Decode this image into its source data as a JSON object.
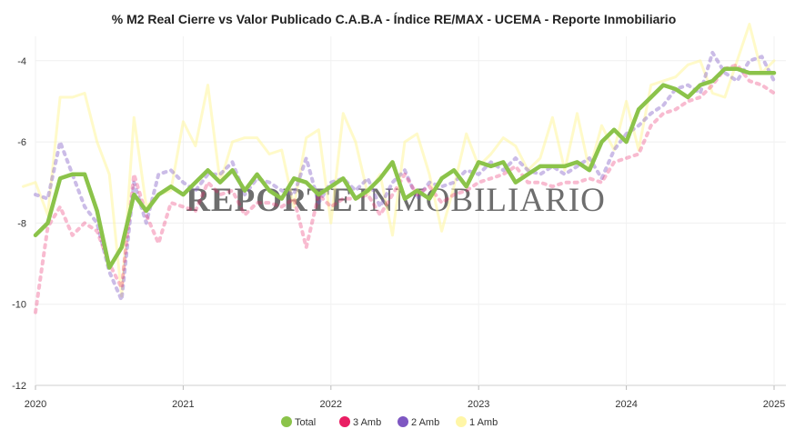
{
  "chart_data": {
    "type": "line",
    "title": "% M2 Real Cierre vs Valor Publicado C.A.B.A - Índice RE/MAX - UCEMA - Reporte Inmobiliario",
    "xlabel": "",
    "ylabel": "",
    "xlim": [
      2020.0,
      2025.08
    ],
    "ylim": [
      -12,
      -3.4
    ],
    "x_ticks": [
      "2020",
      "2021",
      "2022",
      "2023",
      "2024",
      "2025"
    ],
    "y_ticks": [
      "-4",
      "-6",
      "-8",
      "-10",
      "-12"
    ],
    "x_tick_values": [
      2020,
      2021,
      2022,
      2023,
      2024,
      2025
    ],
    "y_tick_values": [
      -4,
      -6,
      -8,
      -10,
      -12
    ],
    "grid": true,
    "legend_position": "bottom",
    "watermark": {
      "part1": "REPORTE",
      "part2": "INMOBILIARIO"
    },
    "series": [
      {
        "name": "1 Amb",
        "color": "#FFF59D",
        "style": "solid",
        "width": 3,
        "opacity": 0.55,
        "x": [
          2019.917,
          2020.0,
          2020.083,
          2020.167,
          2020.25,
          2020.333,
          2020.417,
          2020.5,
          2020.583,
          2020.667,
          2020.75,
          2020.833,
          2020.917,
          2021.0,
          2021.083,
          2021.167,
          2021.25,
          2021.333,
          2021.417,
          2021.5,
          2021.583,
          2021.667,
          2021.75,
          2021.833,
          2021.917,
          2022.0,
          2022.083,
          2022.167,
          2022.25,
          2022.333,
          2022.417,
          2022.5,
          2022.583,
          2022.667,
          2022.75,
          2022.833,
          2022.917,
          2023.0,
          2023.083,
          2023.167,
          2023.25,
          2023.333,
          2023.417,
          2023.5,
          2023.583,
          2023.667,
          2023.75,
          2023.833,
          2023.917,
          2024.0,
          2024.083,
          2024.167,
          2024.25,
          2024.333,
          2024.417,
          2024.5,
          2024.583,
          2024.667,
          2024.75,
          2024.833,
          2024.917,
          2025.0
        ],
        "values": [
          -7.1,
          -7.0,
          -7.8,
          -4.9,
          -4.9,
          -4.8,
          -6.0,
          -6.8,
          -9.8,
          -5.4,
          -7.6,
          -7.3,
          -7.2,
          -5.5,
          -6.1,
          -4.6,
          -7.0,
          -6.0,
          -5.9,
          -5.9,
          -6.3,
          -6.2,
          -7.6,
          -5.9,
          -5.7,
          -8.0,
          -5.3,
          -6.0,
          -7.3,
          -6.8,
          -8.3,
          -6.0,
          -5.8,
          -6.8,
          -8.2,
          -7.1,
          -5.8,
          -6.6,
          -6.3,
          -5.9,
          -6.1,
          -6.7,
          -6.4,
          -5.4,
          -6.7,
          -5.3,
          -6.7,
          -5.6,
          -6.2,
          -5.0,
          -6.2,
          -4.6,
          -4.5,
          -4.4,
          -4.1,
          -4.0,
          -4.8,
          -4.9,
          -4.0,
          -3.1,
          -4.3,
          -4.0
        ]
      },
      {
        "name": "2 Amb",
        "color": "#7E57C2",
        "style": "dotted",
        "width": 4,
        "opacity": 0.4,
        "x": [
          2020.0,
          2020.083,
          2020.167,
          2020.25,
          2020.333,
          2020.417,
          2020.5,
          2020.583,
          2020.667,
          2020.75,
          2020.833,
          2020.917,
          2021.0,
          2021.083,
          2021.167,
          2021.25,
          2021.333,
          2021.417,
          2021.5,
          2021.583,
          2021.667,
          2021.75,
          2021.833,
          2021.917,
          2022.0,
          2022.083,
          2022.167,
          2022.25,
          2022.333,
          2022.417,
          2022.5,
          2022.583,
          2022.667,
          2022.75,
          2022.833,
          2022.917,
          2023.0,
          2023.083,
          2023.167,
          2023.25,
          2023.333,
          2023.417,
          2023.5,
          2023.583,
          2023.667,
          2023.75,
          2023.833,
          2023.917,
          2024.0,
          2024.083,
          2024.167,
          2024.25,
          2024.333,
          2024.417,
          2024.5,
          2024.583,
          2024.667,
          2024.75,
          2024.833,
          2024.917,
          2025.0
        ],
        "values": [
          -7.3,
          -7.4,
          -6.0,
          -6.8,
          -7.6,
          -8.0,
          -9.2,
          -9.9,
          -7.0,
          -8.0,
          -6.8,
          -6.7,
          -7.0,
          -7.2,
          -6.8,
          -6.8,
          -6.5,
          -7.3,
          -6.9,
          -7.0,
          -7.2,
          -7.3,
          -6.4,
          -7.5,
          -7.0,
          -6.9,
          -7.2,
          -6.9,
          -7.6,
          -7.0,
          -6.7,
          -7.4,
          -7.0,
          -7.1,
          -7.0,
          -6.7,
          -6.8,
          -6.5,
          -6.7,
          -6.4,
          -6.7,
          -6.8,
          -6.6,
          -6.8,
          -6.6,
          -6.4,
          -6.9,
          -6.2,
          -5.8,
          -5.6,
          -5.3,
          -5.1,
          -4.7,
          -4.6,
          -4.8,
          -3.8,
          -4.3,
          -4.5,
          -4.0,
          -3.9,
          -4.5
        ]
      },
      {
        "name": "3 Amb",
        "color": "#E91E63",
        "style": "dotted",
        "width": 4,
        "opacity": 0.3,
        "x": [
          2020.0,
          2020.083,
          2020.167,
          2020.25,
          2020.333,
          2020.417,
          2020.5,
          2020.583,
          2020.667,
          2020.75,
          2020.833,
          2020.917,
          2021.0,
          2021.083,
          2021.167,
          2021.25,
          2021.333,
          2021.417,
          2021.5,
          2021.583,
          2021.667,
          2021.75,
          2021.833,
          2021.917,
          2022.0,
          2022.083,
          2022.167,
          2022.25,
          2022.333,
          2022.417,
          2022.5,
          2022.583,
          2022.667,
          2022.75,
          2022.833,
          2022.917,
          2023.0,
          2023.083,
          2023.167,
          2023.25,
          2023.333,
          2023.417,
          2023.5,
          2023.583,
          2023.667,
          2023.75,
          2023.833,
          2023.917,
          2024.0,
          2024.083,
          2024.167,
          2024.25,
          2024.333,
          2024.417,
          2024.5,
          2024.583,
          2024.667,
          2024.75,
          2024.833,
          2024.917,
          2025.0
        ],
        "values": [
          -10.2,
          -8.1,
          -7.6,
          -8.3,
          -8.0,
          -8.2,
          -9.0,
          -9.6,
          -6.8,
          -7.8,
          -8.5,
          -7.5,
          -7.6,
          -7.7,
          -7.0,
          -7.3,
          -7.2,
          -7.8,
          -7.5,
          -7.5,
          -7.6,
          -7.4,
          -8.6,
          -7.3,
          -7.6,
          -7.4,
          -7.4,
          -7.3,
          -7.8,
          -7.3,
          -6.8,
          -7.3,
          -7.1,
          -7.5,
          -7.3,
          -7.2,
          -7.0,
          -6.9,
          -6.8,
          -6.6,
          -7.0,
          -7.0,
          -7.1,
          -7.0,
          -7.0,
          -6.9,
          -7.0,
          -6.5,
          -6.4,
          -6.3,
          -5.6,
          -5.3,
          -5.2,
          -5.0,
          -4.9,
          -4.6,
          -4.2,
          -4.1,
          -4.5,
          -4.6,
          -4.8
        ]
      },
      {
        "name": "Total",
        "color": "#8BC34A",
        "style": "solid",
        "width": 4.5,
        "opacity": 1,
        "x": [
          2020.0,
          2020.083,
          2020.167,
          2020.25,
          2020.333,
          2020.417,
          2020.5,
          2020.583,
          2020.667,
          2020.75,
          2020.833,
          2020.917,
          2021.0,
          2021.083,
          2021.167,
          2021.25,
          2021.333,
          2021.417,
          2021.5,
          2021.583,
          2021.667,
          2021.75,
          2021.833,
          2021.917,
          2022.0,
          2022.083,
          2022.167,
          2022.25,
          2022.333,
          2022.417,
          2022.5,
          2022.583,
          2022.667,
          2022.75,
          2022.833,
          2022.917,
          2023.0,
          2023.083,
          2023.167,
          2023.25,
          2023.333,
          2023.417,
          2023.5,
          2023.583,
          2023.667,
          2023.75,
          2023.833,
          2023.917,
          2024.0,
          2024.083,
          2024.167,
          2024.25,
          2024.333,
          2024.417,
          2024.5,
          2024.583,
          2024.667,
          2024.75,
          2024.833,
          2024.917,
          2025.0
        ],
        "values": [
          -8.3,
          -8.0,
          -6.9,
          -6.8,
          -6.8,
          -7.7,
          -9.1,
          -8.6,
          -7.3,
          -7.7,
          -7.3,
          -7.1,
          -7.3,
          -7.0,
          -6.7,
          -7.0,
          -6.7,
          -7.2,
          -6.8,
          -7.2,
          -7.4,
          -6.9,
          -7.0,
          -7.3,
          -7.1,
          -6.9,
          -7.4,
          -7.2,
          -6.9,
          -6.5,
          -7.4,
          -7.2,
          -7.4,
          -6.9,
          -6.7,
          -7.1,
          -6.5,
          -6.6,
          -6.5,
          -7.0,
          -6.8,
          -6.6,
          -6.6,
          -6.6,
          -6.5,
          -6.7,
          -6.0,
          -5.7,
          -6.0,
          -5.2,
          -4.9,
          -4.6,
          -4.7,
          -4.9,
          -4.6,
          -4.5,
          -4.2,
          -4.2,
          -4.3,
          -4.3,
          -4.3
        ]
      }
    ],
    "legend_order": [
      "Total",
      "3 Amb",
      "2 Amb",
      "1 Amb"
    ]
  }
}
